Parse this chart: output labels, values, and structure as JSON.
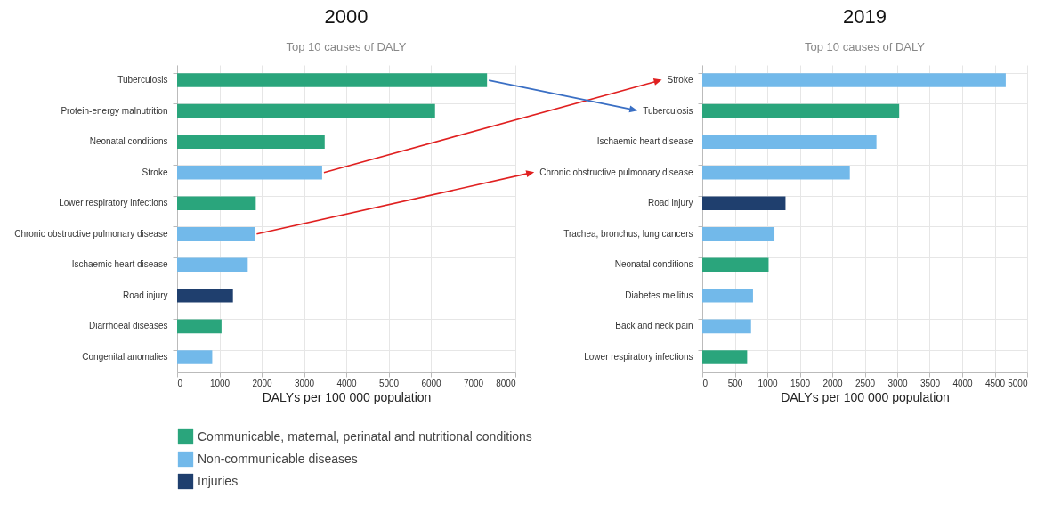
{
  "chart_data": [
    {
      "type": "bar",
      "orientation": "horizontal",
      "title": "2000",
      "subtitle": "Top 10 causes of DALY",
      "xlabel": "DALYs per 100 000 population",
      "categories": [
        "Tuberculosis",
        "Protein-energy malnutrition",
        "Neonatal conditions",
        "Stroke",
        "Lower respiratory infections",
        "Chronic obstructive pulmonary disease",
        "Ischaemic heart disease",
        "Road injury",
        "Diarrhoeal diseases",
        "Congenital anomalies"
      ],
      "series": [
        {
          "name": "Communicable, maternal, perinatal and nutritional conditions",
          "color": "#2aa57c",
          "values": [
            7330,
            6100,
            3490,
            null,
            1860,
            null,
            null,
            null,
            1050,
            null
          ]
        },
        {
          "name": "Non-communicable diseases",
          "color": "#72b9ea",
          "values": [
            null,
            null,
            null,
            3430,
            null,
            1840,
            1670,
            null,
            null,
            830
          ]
        },
        {
          "name": "Injuries",
          "color": "#1f3f6e",
          "values": [
            null,
            null,
            null,
            null,
            null,
            null,
            null,
            1320,
            null,
            null
          ]
        }
      ],
      "xlim": [
        0,
        8000
      ],
      "xticks": [
        0,
        1000,
        2000,
        3000,
        4000,
        5000,
        6000,
        7000,
        8000
      ],
      "grid": true,
      "legend": "bottom"
    },
    {
      "type": "bar",
      "orientation": "horizontal",
      "title": "2019",
      "subtitle": "Top 10 causes of DALY",
      "xlabel": "DALYs per 100 000 population",
      "categories": [
        "Stroke",
        "Tuberculosis",
        "Ischaemic heart disease",
        "Chronic obstructive pulmonary disease",
        "Road injury",
        "Trachea, bronchus, lung cancers",
        "Neonatal conditions",
        "Diabetes mellitus",
        "Back and neck pain",
        "Lower respiratory infections"
      ],
      "series": [
        {
          "name": "Communicable, maternal, perinatal and nutritional conditions",
          "color": "#2aa57c",
          "values": [
            null,
            3030,
            null,
            null,
            null,
            null,
            1020,
            null,
            null,
            690
          ]
        },
        {
          "name": "Non-communicable diseases",
          "color": "#72b9ea",
          "values": [
            4670,
            null,
            2680,
            2270,
            null,
            1110,
            null,
            780,
            750,
            null
          ]
        },
        {
          "name": "Injuries",
          "color": "#1f3f6e",
          "values": [
            null,
            null,
            null,
            null,
            1280,
            null,
            null,
            null,
            null,
            null
          ]
        }
      ],
      "xlim": [
        0,
        5000
      ],
      "xticks": [
        0,
        500,
        1000,
        1500,
        2000,
        2500,
        3000,
        3500,
        4000,
        4500,
        5000
      ],
      "grid": true,
      "legend": "bottom"
    }
  ]
}
